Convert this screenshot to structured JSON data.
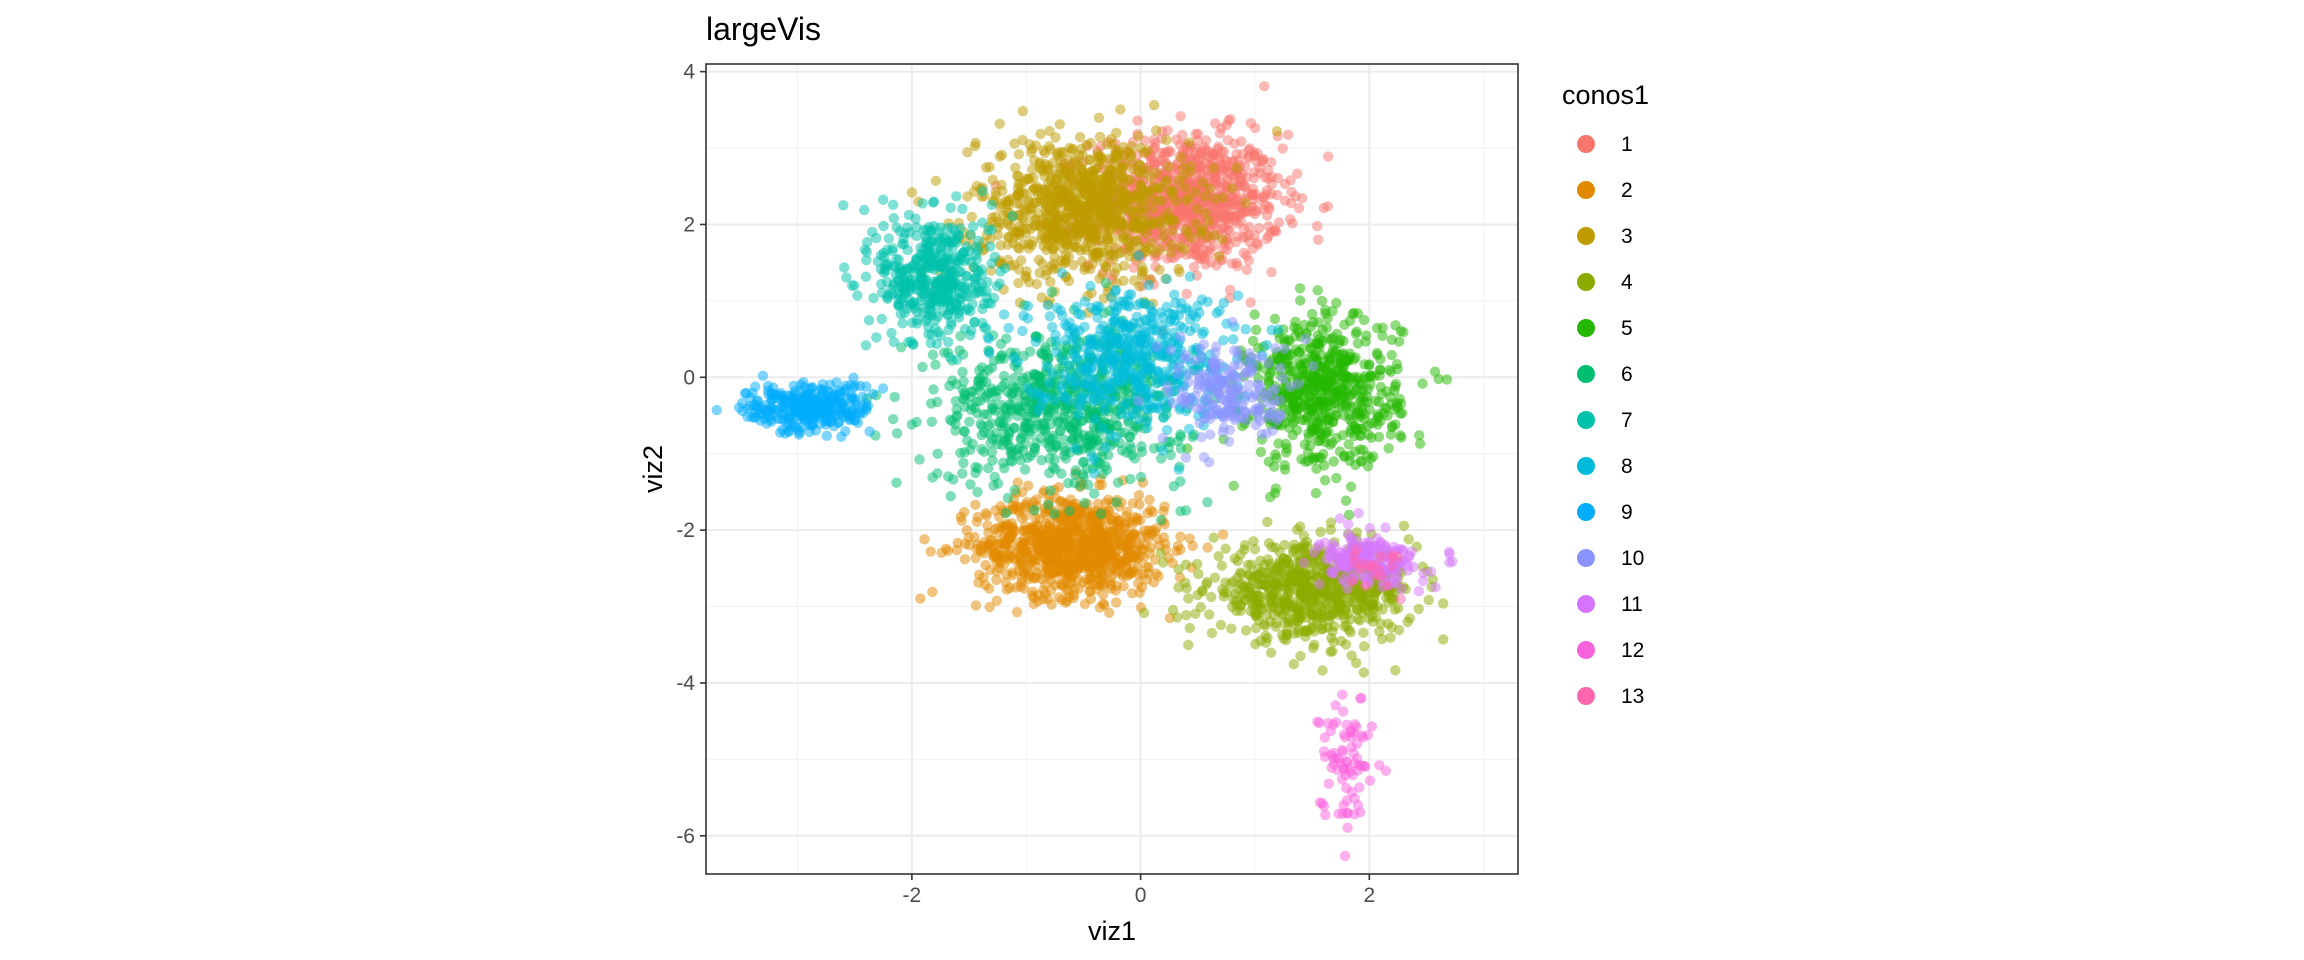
{
  "chart_data": {
    "type": "scatter",
    "title": "largeVis",
    "xlabel": "viz1",
    "ylabel": "viz2",
    "xlim": [
      -3.8,
      3.3
    ],
    "ylim": [
      -6.5,
      4.1
    ],
    "x_ticks": [
      -2,
      0,
      2
    ],
    "y_ticks": [
      4,
      2,
      0,
      -2,
      -4,
      -6
    ],
    "x_tick_labels": [
      "-2",
      "0",
      "2"
    ],
    "y_tick_labels": [
      "4",
      "2",
      "0",
      "-2",
      "-4",
      "-6"
    ],
    "grid": true,
    "legend": {
      "title": "conos1",
      "position": "right",
      "labels": [
        "1",
        "2",
        "3",
        "4",
        "5",
        "6",
        "7",
        "8",
        "9",
        "10",
        "11",
        "12",
        "13"
      ]
    },
    "series": [
      {
        "name": "1",
        "color": "#F8766D",
        "center": [
          0.4,
          2.3
        ],
        "spread": [
          0.75,
          0.8
        ],
        "count": 900
      },
      {
        "name": "2",
        "color": "#E18A00",
        "center": [
          -0.6,
          -2.2
        ],
        "spread": [
          0.75,
          0.6
        ],
        "count": 900
      },
      {
        "name": "3",
        "color": "#BE9C00",
        "center": [
          -0.5,
          2.2
        ],
        "spread": [
          0.85,
          0.85
        ],
        "count": 900
      },
      {
        "name": "4",
        "color": "#8CAB00",
        "center": [
          1.5,
          -2.8
        ],
        "spread": [
          0.8,
          0.55
        ],
        "count": 700
      },
      {
        "name": "5",
        "color": "#24B700",
        "center": [
          1.6,
          -0.2
        ],
        "spread": [
          0.6,
          0.9
        ],
        "count": 600
      },
      {
        "name": "6",
        "color": "#00BE70",
        "center": [
          -0.7,
          -0.4
        ],
        "spread": [
          1.0,
          0.9
        ],
        "count": 700
      },
      {
        "name": "7",
        "color": "#00C1AB",
        "center": [
          -1.8,
          1.3
        ],
        "spread": [
          0.45,
          0.8
        ],
        "count": 450
      },
      {
        "name": "8",
        "color": "#00BBDA",
        "center": [
          -0.1,
          0.3
        ],
        "spread": [
          0.8,
          0.8
        ],
        "count": 500
      },
      {
        "name": "9",
        "color": "#00ACFC",
        "center": [
          -2.9,
          -0.4
        ],
        "spread": [
          0.5,
          0.3
        ],
        "count": 300
      },
      {
        "name": "10",
        "color": "#8B93FF",
        "center": [
          0.8,
          -0.2
        ],
        "spread": [
          0.5,
          0.6
        ],
        "count": 200
      },
      {
        "name": "11",
        "color": "#D575FE",
        "center": [
          2.0,
          -2.4
        ],
        "spread": [
          0.4,
          0.3
        ],
        "count": 200
      },
      {
        "name": "12",
        "color": "#F962DD",
        "center": [
          1.8,
          -5.0
        ],
        "spread": [
          0.2,
          0.8
        ],
        "count": 80
      },
      {
        "name": "13",
        "color": "#FF65AC",
        "center": [
          2.0,
          -2.5
        ],
        "spread": [
          0.3,
          0.3
        ],
        "count": 20
      }
    ]
  }
}
